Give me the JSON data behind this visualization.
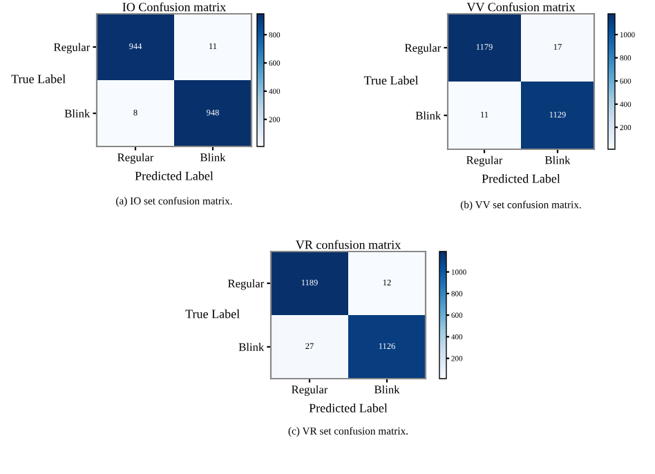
{
  "chart_data": [
    {
      "type": "heatmap",
      "title": "IO Confusion matrix",
      "xlabel": "Predicted Label",
      "ylabel": "True Label",
      "categories": [
        "Regular",
        "Blink"
      ],
      "y_categories": [
        "Regular",
        "Blink"
      ],
      "cells": [
        [
          944,
          11
        ],
        [
          8,
          948
        ]
      ],
      "data_labels": true,
      "clim": [
        8,
        948
      ],
      "cticks": [
        200,
        400,
        600,
        800
      ],
      "annotations": [
        "(a) IO set confusion matrix."
      ]
    },
    {
      "type": "heatmap",
      "title": "VV Confusion matrix",
      "xlabel": "Predicted Label",
      "ylabel": "True Label",
      "categories": [
        "Regular",
        "Blink"
      ],
      "y_categories": [
        "Regular",
        "Blink"
      ],
      "cells": [
        [
          1179,
          17
        ],
        [
          11,
          1129
        ]
      ],
      "data_labels": true,
      "clim": [
        11,
        1179
      ],
      "cticks": [
        200,
        400,
        600,
        800,
        1000
      ],
      "annotations": [
        "(b) VV set confusion matrix."
      ]
    },
    {
      "type": "heatmap",
      "title": "VR confusion matrix",
      "xlabel": "Predicted Label",
      "ylabel": "True Label",
      "categories": [
        "Regular",
        "Blink"
      ],
      "y_categories": [
        "Regular",
        "Blink"
      ],
      "cells": [
        [
          1189,
          12
        ],
        [
          27,
          1126
        ]
      ],
      "data_labels": true,
      "clim": [
        12,
        1189
      ],
      "cticks": [
        200,
        400,
        600,
        800,
        1000
      ],
      "annotations": [
        "(c) VR set confusion matrix."
      ]
    }
  ]
}
